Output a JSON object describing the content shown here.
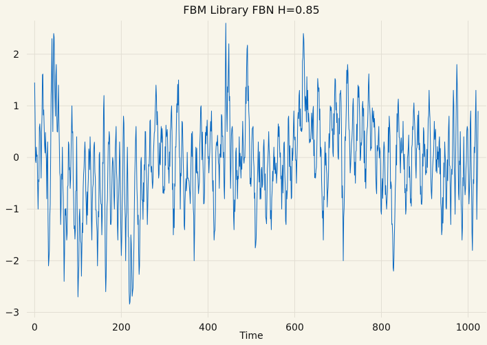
{
  "chart_data": {
    "type": "line",
    "title": "FBM Library FBN H=0.85",
    "xlabel": "Time",
    "ylabel": "",
    "xlim": [
      -18,
      1042
    ],
    "ylim": [
      -3.1,
      2.65
    ],
    "xticks": [
      0,
      200,
      400,
      600,
      800,
      1000
    ],
    "yticks": [
      -3,
      -2,
      -1,
      0,
      1,
      2
    ],
    "grid": true,
    "legend": "none",
    "n_points": 1024,
    "series": [
      {
        "color": "#0a68c0",
        "anchors": [
          [
            0,
            1.45
          ],
          [
            2,
            -0.05
          ],
          [
            4,
            0.2
          ],
          [
            8,
            -1.0
          ],
          [
            12,
            0.65
          ],
          [
            15,
            -0.4
          ],
          [
            18,
            1.6
          ],
          [
            22,
            0.6
          ],
          [
            26,
            0.1
          ],
          [
            28,
            -0.8
          ],
          [
            30,
            0.3
          ],
          [
            32,
            -2.1
          ],
          [
            34,
            -1.8
          ],
          [
            36,
            -0.9
          ],
          [
            38,
            1.2
          ],
          [
            40,
            2.3
          ],
          [
            42,
            0.5
          ],
          [
            44,
            2.4
          ],
          [
            48,
            0.8
          ],
          [
            50,
            1.8
          ],
          [
            52,
            0.5
          ],
          [
            55,
            1.4
          ],
          [
            58,
            -0.3
          ],
          [
            60,
            -1.3
          ],
          [
            64,
            0.2
          ],
          [
            68,
            -2.4
          ],
          [
            70,
            -1.0
          ],
          [
            74,
            -1.6
          ],
          [
            78,
            0.3
          ],
          [
            82,
            -0.6
          ],
          [
            86,
            1.0
          ],
          [
            90,
            -0.8
          ],
          [
            94,
            -1.4
          ],
          [
            97,
            0.4
          ],
          [
            100,
            -2.7
          ],
          [
            104,
            -1.0
          ],
          [
            108,
            -2.3
          ],
          [
            112,
            -0.6
          ],
          [
            116,
            0.3
          ],
          [
            120,
            -1.3
          ],
          [
            124,
            -0.4
          ],
          [
            128,
            0.4
          ],
          [
            132,
            -1.6
          ],
          [
            136,
            0.1
          ],
          [
            140,
            -0.4
          ],
          [
            145,
            -2.1
          ],
          [
            150,
            0.1
          ],
          [
            155,
            -1.5
          ],
          [
            160,
            1.2
          ],
          [
            164,
            -2.6
          ],
          [
            168,
            -0.8
          ],
          [
            172,
            0.5
          ],
          [
            176,
            -1.3
          ],
          [
            180,
            0.0
          ],
          [
            184,
            -1.0
          ],
          [
            188,
            0.6
          ],
          [
            192,
            -1.6
          ],
          [
            196,
            0.3
          ],
          [
            200,
            -1.9
          ],
          [
            205,
            0.8
          ],
          [
            210,
            -2.0
          ],
          [
            214,
            0.2
          ],
          [
            218,
            -2.6
          ],
          [
            220,
            -2.8
          ],
          [
            222,
            -1.5
          ],
          [
            226,
            -2.6
          ],
          [
            230,
            -1.0
          ],
          [
            234,
            0.6
          ],
          [
            238,
            -1.3
          ],
          [
            242,
            -2.1
          ],
          [
            246,
            0.0
          ],
          [
            250,
            -1.2
          ],
          [
            256,
            0.5
          ],
          [
            260,
            -1.3
          ],
          [
            266,
            0.7
          ],
          [
            272,
            -0.6
          ],
          [
            280,
            1.4
          ],
          [
            286,
            -0.4
          ],
          [
            292,
            0.6
          ],
          [
            298,
            -0.7
          ],
          [
            304,
            0.4
          ],
          [
            310,
            -0.5
          ],
          [
            316,
            1.0
          ],
          [
            320,
            -1.5
          ],
          [
            326,
            0.2
          ],
          [
            332,
            1.5
          ],
          [
            336,
            -1.0
          ],
          [
            340,
            0.7
          ],
          [
            346,
            -1.4
          ],
          [
            352,
            0.1
          ],
          [
            358,
            -0.7
          ],
          [
            364,
            0.5
          ],
          [
            368,
            -2.0
          ],
          [
            372,
            0.2
          ],
          [
            378,
            -0.7
          ],
          [
            384,
            1.0
          ],
          [
            390,
            -0.9
          ],
          [
            396,
            0.6
          ],
          [
            402,
            -0.3
          ],
          [
            408,
            0.9
          ],
          [
            414,
            -1.6
          ],
          [
            420,
            0.3
          ],
          [
            426,
            -0.6
          ],
          [
            432,
            0.8
          ],
          [
            438,
            -0.8
          ],
          [
            441,
            2.6
          ],
          [
            444,
            0.5
          ],
          [
            448,
            2.2
          ],
          [
            452,
            -0.6
          ],
          [
            456,
            0.6
          ],
          [
            460,
            -1.4
          ],
          [
            464,
            0.1
          ],
          [
            468,
            -0.8
          ],
          [
            472,
            0.4
          ],
          [
            476,
            -0.4
          ],
          [
            480,
            0.7
          ],
          [
            484,
            0.0
          ],
          [
            490,
            2.1
          ],
          [
            494,
            0.9
          ],
          [
            498,
            -0.4
          ],
          [
            504,
            0.6
          ],
          [
            510,
            -1.7
          ],
          [
            516,
            0.3
          ],
          [
            522,
            -0.8
          ],
          [
            528,
            0.2
          ],
          [
            534,
            -1.2
          ],
          [
            540,
            0.5
          ],
          [
            546,
            -1.4
          ],
          [
            552,
            0.2
          ],
          [
            558,
            -0.5
          ],
          [
            564,
            0.6
          ],
          [
            570,
            -1.0
          ],
          [
            576,
            0.3
          ],
          [
            580,
            -1.3
          ],
          [
            586,
            0.8
          ],
          [
            592,
            -0.8
          ],
          [
            598,
            0.9
          ],
          [
            604,
            -0.5
          ],
          [
            610,
            1.2
          ],
          [
            616,
            0.5
          ],
          [
            620,
            2.4
          ],
          [
            624,
            0.9
          ],
          [
            630,
            1.3
          ],
          [
            636,
            0.3
          ],
          [
            642,
            0.9
          ],
          [
            648,
            -0.4
          ],
          [
            654,
            1.4
          ],
          [
            660,
            0.2
          ],
          [
            666,
            -1.6
          ],
          [
            670,
            0.3
          ],
          [
            676,
            -0.7
          ],
          [
            682,
            1.0
          ],
          [
            688,
            0.1
          ],
          [
            694,
            1.5
          ],
          [
            700,
            0.0
          ],
          [
            706,
            1.3
          ],
          [
            712,
            -2.0
          ],
          [
            716,
            0.4
          ],
          [
            722,
            1.8
          ],
          [
            728,
            -0.3
          ],
          [
            734,
            1.0
          ],
          [
            740,
            -0.5
          ],
          [
            746,
            1.4
          ],
          [
            752,
            0.0
          ],
          [
            758,
            0.8
          ],
          [
            764,
            -0.6
          ],
          [
            770,
            1.4
          ],
          [
            776,
            0.2
          ],
          [
            782,
            0.9
          ],
          [
            788,
            -0.6
          ],
          [
            794,
            0.6
          ],
          [
            800,
            -1.1
          ],
          [
            806,
            0.3
          ],
          [
            812,
            -1.0
          ],
          [
            818,
            0.8
          ],
          [
            824,
            -1.3
          ],
          [
            828,
            -2.2
          ],
          [
            832,
            -0.6
          ],
          [
            838,
            1.0
          ],
          [
            844,
            -0.3
          ],
          [
            850,
            0.7
          ],
          [
            856,
            -1.1
          ],
          [
            862,
            0.2
          ],
          [
            868,
            -0.8
          ],
          [
            874,
            0.9
          ],
          [
            880,
            -0.4
          ],
          [
            886,
            0.9
          ],
          [
            892,
            -0.9
          ],
          [
            898,
            0.5
          ],
          [
            904,
            -0.3
          ],
          [
            910,
            1.3
          ],
          [
            916,
            -0.8
          ],
          [
            922,
            0.7
          ],
          [
            928,
            -0.3
          ],
          [
            934,
            0.4
          ],
          [
            940,
            -1.4
          ],
          [
            946,
            0.3
          ],
          [
            950,
            -1.0
          ],
          [
            956,
            0.8
          ],
          [
            960,
            -1.3
          ],
          [
            966,
            1.3
          ],
          [
            970,
            -1.1
          ],
          [
            974,
            1.8
          ],
          [
            978,
            -0.7
          ],
          [
            982,
            0.5
          ],
          [
            986,
            -1.6
          ],
          [
            990,
            0.4
          ],
          [
            994,
            -0.6
          ],
          [
            998,
            0.6
          ],
          [
            1002,
            -0.9
          ],
          [
            1006,
            0.9
          ],
          [
            1010,
            -1.8
          ],
          [
            1014,
            0.2
          ],
          [
            1018,
            1.3
          ],
          [
            1020,
            -1.2
          ],
          [
            1023,
            0.9
          ]
        ]
      }
    ]
  }
}
